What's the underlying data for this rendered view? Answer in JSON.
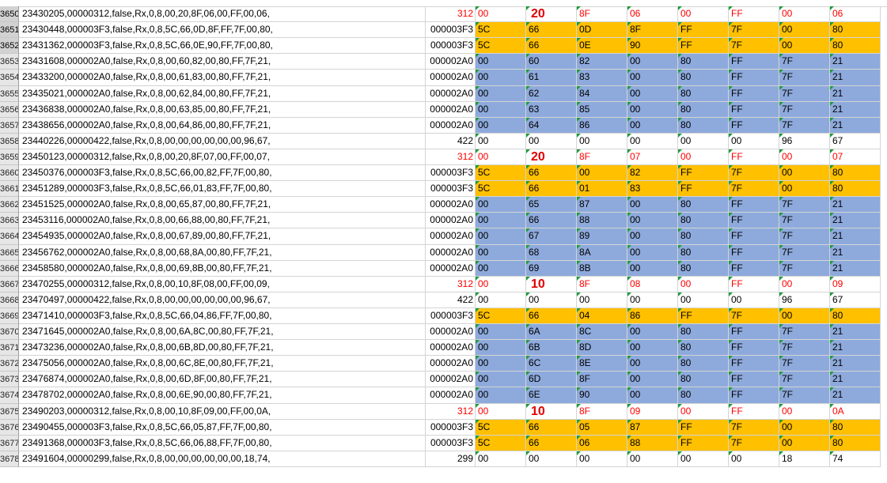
{
  "colors": {
    "yellow": "#ffc000",
    "blue": "#8eaadc",
    "red": "#ff0000",
    "triangle": "#1b9b3a"
  },
  "rows": [
    {
      "n": "3650",
      "raw": "23430205,00000312,false,Rx,0,8,00,20,8F,06,00,FF,00,06,",
      "id": "312",
      "b": [
        "00",
        "20",
        "8F",
        "06",
        "00",
        "FF",
        "00",
        "06"
      ],
      "kind": "red"
    },
    {
      "n": "3651",
      "raw": "23430448,000003F3,false,Rx,0,8,5C,66,0D,8F,FF,7F,00,80,",
      "id": "000003F3",
      "b": [
        "5C",
        "66",
        "0D",
        "8F",
        "FF",
        "7F",
        "00",
        "80"
      ],
      "kind": "yellow"
    },
    {
      "n": "3652",
      "raw": "23431362,000003F3,false,Rx,0,8,5C,66,0E,90,FF,7F,00,80,",
      "id": "000003F3",
      "b": [
        "5C",
        "66",
        "0E",
        "90",
        "FF",
        "7F",
        "00",
        "80"
      ],
      "kind": "yellow"
    },
    {
      "n": "3653",
      "raw": "23431608,000002A0,false,Rx,0,8,00,60,82,00,80,FF,7F,21,",
      "id": "000002A0",
      "b": [
        "00",
        "60",
        "82",
        "00",
        "80",
        "FF",
        "7F",
        "21"
      ],
      "kind": "blue"
    },
    {
      "n": "3654",
      "raw": "23433200,000002A0,false,Rx,0,8,00,61,83,00,80,FF,7F,21,",
      "id": "000002A0",
      "b": [
        "00",
        "61",
        "83",
        "00",
        "80",
        "FF",
        "7F",
        "21"
      ],
      "kind": "blue"
    },
    {
      "n": "3655",
      "raw": "23435021,000002A0,false,Rx,0,8,00,62,84,00,80,FF,7F,21,",
      "id": "000002A0",
      "b": [
        "00",
        "62",
        "84",
        "00",
        "80",
        "FF",
        "7F",
        "21"
      ],
      "kind": "blue"
    },
    {
      "n": "3656",
      "raw": "23436838,000002A0,false,Rx,0,8,00,63,85,00,80,FF,7F,21,",
      "id": "000002A0",
      "b": [
        "00",
        "63",
        "85",
        "00",
        "80",
        "FF",
        "7F",
        "21"
      ],
      "kind": "blue"
    },
    {
      "n": "3657",
      "raw": "23438656,000002A0,false,Rx,0,8,00,64,86,00,80,FF,7F,21,",
      "id": "000002A0",
      "b": [
        "00",
        "64",
        "86",
        "00",
        "80",
        "FF",
        "7F",
        "21"
      ],
      "kind": "blue"
    },
    {
      "n": "3658",
      "raw": "23440226,00000422,false,Rx,0,8,00,00,00,00,00,00,96,67,",
      "id": "422",
      "b": [
        "00",
        "00",
        "00",
        "00",
        "00",
        "00",
        "96",
        "67"
      ],
      "kind": "plain"
    },
    {
      "n": "3659",
      "raw": "23450123,00000312,false,Rx,0,8,00,20,8F,07,00,FF,00,07,",
      "id": "312",
      "b": [
        "00",
        "20",
        "8F",
        "07",
        "00",
        "FF",
        "00",
        "07"
      ],
      "kind": "red"
    },
    {
      "n": "3660",
      "raw": "23450376,000003F3,false,Rx,0,8,5C,66,00,82,FF,7F,00,80,",
      "id": "000003F3",
      "b": [
        "5C",
        "66",
        "00",
        "82",
        "FF",
        "7F",
        "00",
        "80"
      ],
      "kind": "yellow"
    },
    {
      "n": "3661",
      "raw": "23451289,000003F3,false,Rx,0,8,5C,66,01,83,FF,7F,00,80,",
      "id": "000003F3",
      "b": [
        "5C",
        "66",
        "01",
        "83",
        "FF",
        "7F",
        "00",
        "80"
      ],
      "kind": "yellow"
    },
    {
      "n": "3662",
      "raw": "23451525,000002A0,false,Rx,0,8,00,65,87,00,80,FF,7F,21,",
      "id": "000002A0",
      "b": [
        "00",
        "65",
        "87",
        "00",
        "80",
        "FF",
        "7F",
        "21"
      ],
      "kind": "blue"
    },
    {
      "n": "3663",
      "raw": "23453116,000002A0,false,Rx,0,8,00,66,88,00,80,FF,7F,21,",
      "id": "000002A0",
      "b": [
        "00",
        "66",
        "88",
        "00",
        "80",
        "FF",
        "7F",
        "21"
      ],
      "kind": "blue"
    },
    {
      "n": "3664",
      "raw": "23454935,000002A0,false,Rx,0,8,00,67,89,00,80,FF,7F,21,",
      "id": "000002A0",
      "b": [
        "00",
        "67",
        "89",
        "00",
        "80",
        "FF",
        "7F",
        "21"
      ],
      "kind": "blue"
    },
    {
      "n": "3665",
      "raw": "23456762,000002A0,false,Rx,0,8,00,68,8A,00,80,FF,7F,21,",
      "id": "000002A0",
      "b": [
        "00",
        "68",
        "8A",
        "00",
        "80",
        "FF",
        "7F",
        "21"
      ],
      "kind": "blue"
    },
    {
      "n": "3666",
      "raw": "23458580,000002A0,false,Rx,0,8,00,69,8B,00,80,FF,7F,21,",
      "id": "000002A0",
      "b": [
        "00",
        "69",
        "8B",
        "00",
        "80",
        "FF",
        "7F",
        "21"
      ],
      "kind": "blue"
    },
    {
      "n": "3667",
      "raw": "23470255,00000312,false,Rx,0,8,00,10,8F,08,00,FF,00,09,",
      "id": "312",
      "b": [
        "00",
        "10",
        "8F",
        "08",
        "00",
        "FF",
        "00",
        "09"
      ],
      "kind": "red"
    },
    {
      "n": "3668",
      "raw": "23470497,00000422,false,Rx,0,8,00,00,00,00,00,00,96,67,",
      "id": "422",
      "b": [
        "00",
        "00",
        "00",
        "00",
        "00",
        "00",
        "96",
        "67"
      ],
      "kind": "plain"
    },
    {
      "n": "3669",
      "raw": "23471410,000003F3,false,Rx,0,8,5C,66,04,86,FF,7F,00,80,",
      "id": "000003F3",
      "b": [
        "5C",
        "66",
        "04",
        "86",
        "FF",
        "7F",
        "00",
        "80"
      ],
      "kind": "yellow"
    },
    {
      "n": "3670",
      "raw": "23471645,000002A0,false,Rx,0,8,00,6A,8C,00,80,FF,7F,21,",
      "id": "000002A0",
      "b": [
        "00",
        "6A",
        "8C",
        "00",
        "80",
        "FF",
        "7F",
        "21"
      ],
      "kind": "blue"
    },
    {
      "n": "3671",
      "raw": "23473236,000002A0,false,Rx,0,8,00,6B,8D,00,80,FF,7F,21,",
      "id": "000002A0",
      "b": [
        "00",
        "6B",
        "8D",
        "00",
        "80",
        "FF",
        "7F",
        "21"
      ],
      "kind": "blue"
    },
    {
      "n": "3672",
      "raw": "23475056,000002A0,false,Rx,0,8,00,6C,8E,00,80,FF,7F,21,",
      "id": "000002A0",
      "b": [
        "00",
        "6C",
        "8E",
        "00",
        "80",
        "FF",
        "7F",
        "21"
      ],
      "kind": "blue"
    },
    {
      "n": "3673",
      "raw": "23476874,000002A0,false,Rx,0,8,00,6D,8F,00,80,FF,7F,21,",
      "id": "000002A0",
      "b": [
        "00",
        "6D",
        "8F",
        "00",
        "80",
        "FF",
        "7F",
        "21"
      ],
      "kind": "blue"
    },
    {
      "n": "3674",
      "raw": "23478702,000002A0,false,Rx,0,8,00,6E,90,00,80,FF,7F,21,",
      "id": "000002A0",
      "b": [
        "00",
        "6E",
        "90",
        "00",
        "80",
        "FF",
        "7F",
        "21"
      ],
      "kind": "blue"
    },
    {
      "n": "3675",
      "raw": "23490203,00000312,false,Rx,0,8,00,10,8F,09,00,FF,00,0A,",
      "id": "312",
      "b": [
        "00",
        "10",
        "8F",
        "09",
        "00",
        "FF",
        "00",
        "0A"
      ],
      "kind": "red"
    },
    {
      "n": "3676",
      "raw": "23490455,000003F3,false,Rx,0,8,5C,66,05,87,FF,7F,00,80,",
      "id": "000003F3",
      "b": [
        "5C",
        "66",
        "05",
        "87",
        "FF",
        "7F",
        "00",
        "80"
      ],
      "kind": "yellow"
    },
    {
      "n": "3677",
      "raw": "23491368,000003F3,false,Rx,0,8,5C,66,06,88,FF,7F,00,80,",
      "id": "000003F3",
      "b": [
        "5C",
        "66",
        "06",
        "88",
        "FF",
        "7F",
        "00",
        "80"
      ],
      "kind": "yellow"
    },
    {
      "n": "3678",
      "raw": "23491604,00000299,false,Rx,0,8,00,00,00,00,00,00,18,74,",
      "id": "299",
      "b": [
        "00",
        "00",
        "00",
        "00",
        "00",
        "00",
        "18",
        "74"
      ],
      "kind": "plain"
    }
  ]
}
